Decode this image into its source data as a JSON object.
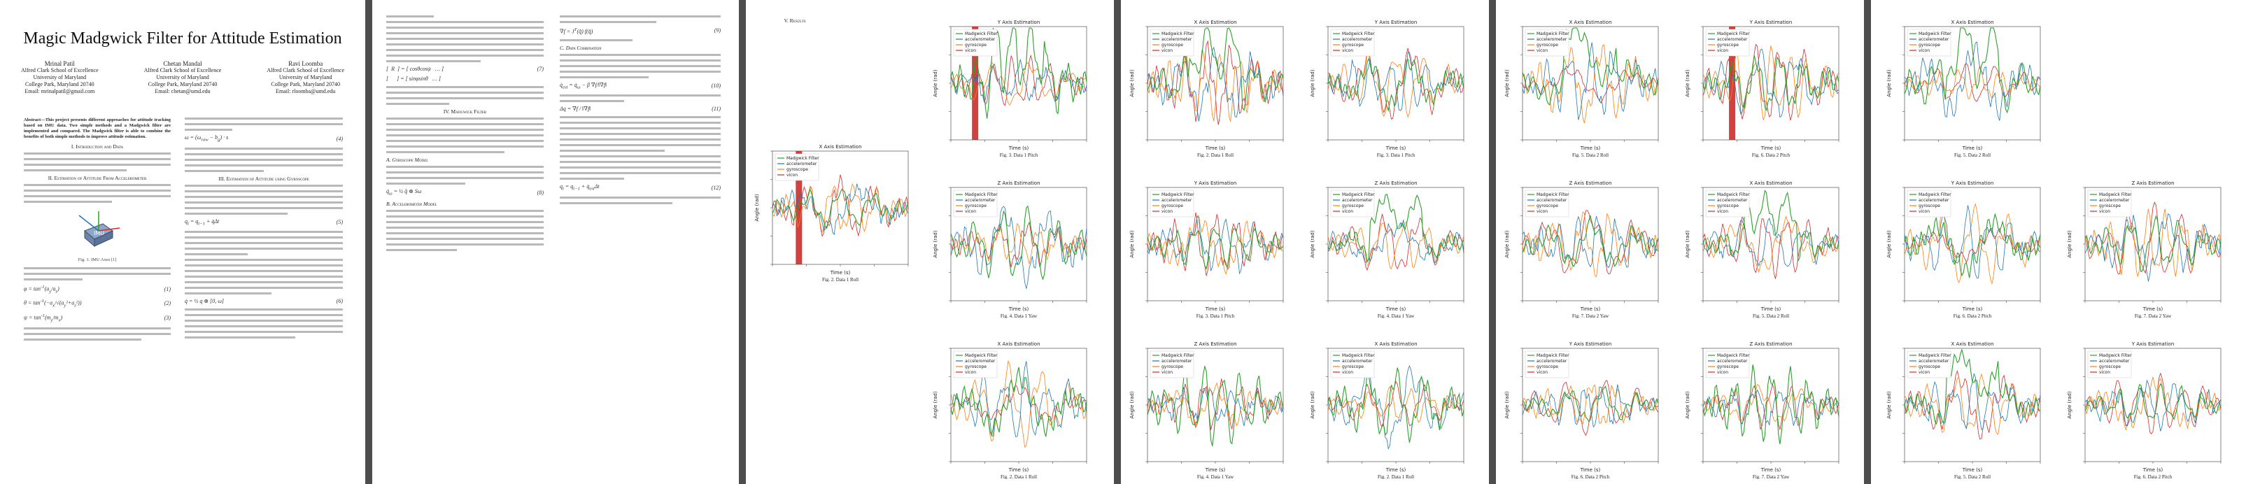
{
  "paper": {
    "title": "Magic Madgwick Filter for Attitude Estimation",
    "authors": [
      {
        "name": "Mrinal Patil",
        "affil": "Alfred Clark School of Excellence",
        "univ": "University of Maryland",
        "city": "College Park, Maryland 20740",
        "email": "Email: mrinalpatil@gmail.com"
      },
      {
        "name": "Chetan Mandal",
        "affil": "Alfred Clark School of Excellence",
        "univ": "University of Maryland",
        "city": "College Park, Maryland 20740",
        "email": "Email: chetan@umd.edu"
      },
      {
        "name": "Ravi Loomba",
        "affil": "Alfred Clark School of Excellence",
        "univ": "University of Maryland",
        "city": "College Park, Maryland 20740",
        "email": "Email: rloomba@umd.edu"
      }
    ],
    "abstract": "Abstract—This project presents different approaches for attitude tracking based on IMU data. Two simple methods and a Madgwick filter are implemented and compared. The Madgwick filter is able to combine the benefits of both simple methods to improve attitude estimation.",
    "sec1": "I. Introduction and Data",
    "sec2": "II. Estimation of Attitude From Accelerometer",
    "sec2b": "III. Estimation of Attitude using Gyroscope",
    "fig1_caption": "Fig. 1. IMU Axes [1]",
    "imu_label": "IMU",
    "sec4": "IV. Madgwick Filter",
    "sub_a": "A. Gyroscope Model",
    "sub_b": "B. Accelerometer Model",
    "sec5": "V. Results",
    "sub_c": "C. Data Combination"
  },
  "legend": {
    "madgwick": "Madgwick Filter",
    "acc": "accelerometer",
    "gyro": "gyroscope",
    "vicon": "vicon"
  },
  "colors": {
    "madgwick": "#2ca02c",
    "acc": "#1f77b4",
    "gyro": "#ff7f0e",
    "vicon": "#d62728"
  },
  "chart_data": [
    {
      "type": "line",
      "title": "X Axis Estimation",
      "xlabel": "Time (s)",
      "ylabel": "Angle (rad)",
      "caption": "Fig. 2. Data 1 Roll"
    },
    {
      "type": "line",
      "title": "Y Axis Estimation",
      "xlabel": "Time (s)",
      "ylabel": "Angle (rad)",
      "caption": "Fig. 3. Data 1 Pitch"
    },
    {
      "type": "line",
      "title": "Z Axis Estimation",
      "xlabel": "Time (s)",
      "ylabel": "Angle (rad)",
      "caption": "Fig. 4. Data 1 Yaw"
    },
    {
      "type": "line",
      "title": "X Axis Estimation",
      "xlabel": "Time (s)",
      "ylabel": "Angle (rad)",
      "caption": "Fig. 5. Data 2 Roll"
    },
    {
      "type": "line",
      "title": "Y Axis Estimation",
      "xlabel": "Time (s)",
      "ylabel": "Angle (rad)",
      "caption": "Fig. 6. Data 2 Pitch"
    },
    {
      "type": "line",
      "title": "Z Axis Estimation",
      "xlabel": "Time (s)",
      "ylabel": "Angle (rad)",
      "caption": "Fig. 7. Data 2 Yaw"
    }
  ]
}
